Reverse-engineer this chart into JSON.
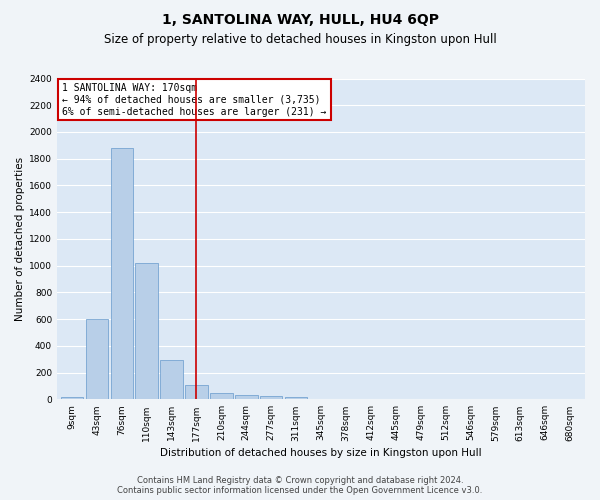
{
  "title": "1, SANTOLINA WAY, HULL, HU4 6QP",
  "subtitle": "Size of property relative to detached houses in Kingston upon Hull",
  "xlabel": "Distribution of detached houses by size in Kingston upon Hull",
  "ylabel": "Number of detached properties",
  "categories": [
    "9sqm",
    "43sqm",
    "76sqm",
    "110sqm",
    "143sqm",
    "177sqm",
    "210sqm",
    "244sqm",
    "277sqm",
    "311sqm",
    "345sqm",
    "378sqm",
    "412sqm",
    "445sqm",
    "479sqm",
    "512sqm",
    "546sqm",
    "579sqm",
    "613sqm",
    "646sqm",
    "680sqm"
  ],
  "values": [
    15,
    600,
    1880,
    1020,
    295,
    110,
    50,
    35,
    25,
    15,
    5,
    3,
    2,
    1,
    1,
    0,
    0,
    0,
    0,
    0,
    0
  ],
  "bar_color": "#b8cfe8",
  "bar_edge_color": "#6699cc",
  "vline_x_index": 5,
  "vline_color": "#cc0000",
  "annotation_line1": "1 SANTOLINA WAY: 170sqm",
  "annotation_line2": "← 94% of detached houses are smaller (3,735)",
  "annotation_line3": "6% of semi-detached houses are larger (231) →",
  "ylim": [
    0,
    2400
  ],
  "yticks": [
    0,
    200,
    400,
    600,
    800,
    1000,
    1200,
    1400,
    1600,
    1800,
    2000,
    2200,
    2400
  ],
  "footnote_line1": "Contains HM Land Registry data © Crown copyright and database right 2024.",
  "footnote_line2": "Contains public sector information licensed under the Open Government Licence v3.0.",
  "bg_color": "#dce8f5",
  "grid_color": "#ffffff",
  "fig_bg_color": "#f0f4f8",
  "title_fontsize": 10,
  "subtitle_fontsize": 8.5,
  "axis_label_fontsize": 7.5,
  "tick_fontsize": 6.5,
  "annotation_fontsize": 7,
  "footnote_fontsize": 6
}
